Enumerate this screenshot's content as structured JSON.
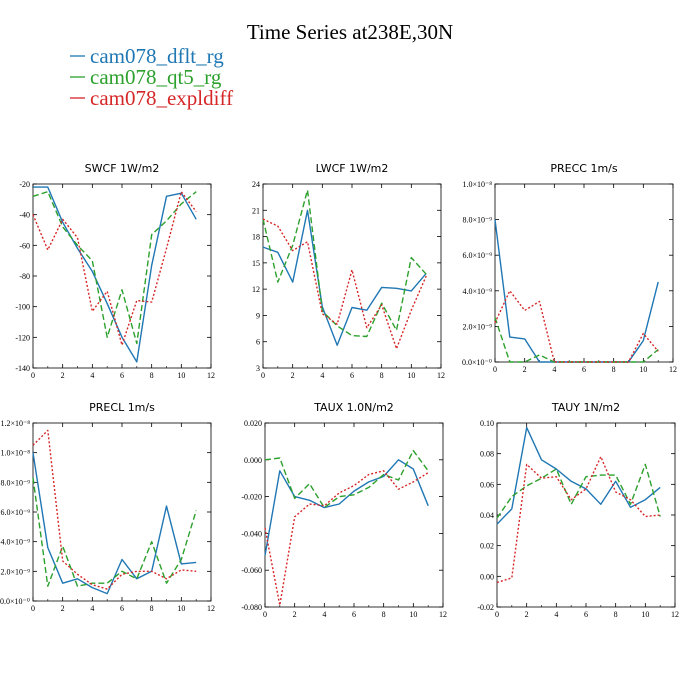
{
  "figure": {
    "title": "Time Series at238E,30N",
    "legend": [
      {
        "label": "cam078_dflt_rg",
        "color": "#1f77b4"
      },
      {
        "label": "cam078_qt5_rg",
        "color": "#2ca02c"
      },
      {
        "label": "cam078_expldiff",
        "color": "#d62728"
      }
    ]
  },
  "chart_data": [
    {
      "type": "line",
      "title": "SWCF   1W/m2",
      "x": [
        0,
        1,
        2,
        3,
        4,
        5,
        6,
        7,
        8,
        9,
        10,
        11
      ],
      "xlim": [
        0,
        12
      ],
      "xticks": [
        "0",
        "2",
        "4",
        "6",
        "8",
        "10",
        "12"
      ],
      "ylim": [
        -140,
        -20
      ],
      "yticks": [
        "-20",
        "-40",
        "-60",
        "-80",
        "-100",
        "-120",
        "-140"
      ],
      "series": [
        {
          "name": "cam078_dflt_rg",
          "values": [
            -22,
            -22,
            -45,
            -62,
            -77,
            -98,
            -120,
            -136,
            -73,
            -28,
            -26,
            -43
          ]
        },
        {
          "name": "cam078_qt5_rg",
          "values": [
            -28,
            -25,
            -48,
            -60,
            -70,
            -120,
            -89,
            -124,
            -53,
            -44,
            -33,
            -25
          ]
        },
        {
          "name": "cam078_expldiff",
          "values": [
            -40,
            -63,
            -43,
            -55,
            -103,
            -90,
            -125,
            -96,
            -97,
            -62,
            -25,
            -38
          ]
        }
      ]
    },
    {
      "type": "line",
      "title": "LWCF   1W/m2",
      "x": [
        0,
        1,
        2,
        3,
        4,
        5,
        6,
        7,
        8,
        9,
        10,
        11
      ],
      "xlim": [
        0,
        12
      ],
      "xticks": [
        "0",
        "2",
        "4",
        "6",
        "8",
        "10",
        "12"
      ],
      "ylim": [
        3,
        24
      ],
      "yticks": [
        "24",
        "21",
        "18",
        "15",
        "12",
        "9",
        "6",
        "3"
      ],
      "series": [
        {
          "name": "cam078_dflt_rg",
          "values": [
            16.8,
            16.2,
            12.8,
            21.0,
            10.0,
            5.6,
            9.9,
            9.6,
            12.2,
            12.1,
            11.8,
            13.8
          ]
        },
        {
          "name": "cam078_qt5_rg",
          "values": [
            20.0,
            12.8,
            17.0,
            23.3,
            9.5,
            7.8,
            6.7,
            6.6,
            10.4,
            7.3,
            15.6,
            13.7
          ]
        },
        {
          "name": "cam078_expldiff",
          "values": [
            20.0,
            19.2,
            16.4,
            17.4,
            9.2,
            8.0,
            14.2,
            7.6,
            10.2,
            5.2,
            9.6,
            13.5
          ]
        }
      ]
    },
    {
      "type": "line",
      "title": "PRECC   1m/s",
      "x": [
        0,
        1,
        2,
        3,
        4,
        5,
        6,
        7,
        8,
        9,
        10,
        11
      ],
      "xlim": [
        0,
        12
      ],
      "xticks": [
        "0",
        "2",
        "4",
        "6",
        "8",
        "10",
        "12"
      ],
      "ylim": [
        0,
        1.0
      ],
      "yunit_exp": "-8",
      "yticks": [
        "1.0×10⁻⁸",
        "8.0×10⁻⁹",
        "6.0×10⁻⁹",
        "4.0×10⁻⁹",
        "2.0×10⁻⁹",
        "0.0×10⁻⁰"
      ],
      "series": [
        {
          "name": "cam078_dflt_rg",
          "values": [
            0.8,
            0.14,
            0.13,
            0.0,
            0.0,
            0.0,
            0.0,
            0.0,
            0.0,
            0.0,
            0.12,
            0.45
          ]
        },
        {
          "name": "cam078_qt5_rg",
          "values": [
            0.25,
            0.0,
            0.0,
            0.04,
            0.0,
            0.0,
            0.0,
            0.0,
            0.0,
            0.0,
            0.0,
            0.07
          ]
        },
        {
          "name": "cam078_expldiff",
          "values": [
            0.22,
            0.4,
            0.29,
            0.34,
            0.0,
            0.0,
            0.0,
            0.0,
            0.0,
            0.0,
            0.16,
            0.06
          ]
        }
      ]
    },
    {
      "type": "line",
      "title": "PRECL   1m/s",
      "x": [
        0,
        1,
        2,
        3,
        4,
        5,
        6,
        7,
        8,
        9,
        10,
        11
      ],
      "xlim": [
        0,
        12
      ],
      "xticks": [
        "0",
        "2",
        "4",
        "6",
        "8",
        "10",
        "12"
      ],
      "ylim": [
        0,
        1.2
      ],
      "yunit_exp": "-8",
      "yticks": [
        "1.2×10⁻⁸",
        "1.0×10⁻⁸",
        "8.0×10⁻⁹",
        "6.0×10⁻⁹",
        "4.0×10⁻⁹",
        "2.0×10⁻⁹",
        "0.0×10⁻⁰"
      ],
      "series": [
        {
          "name": "cam078_dflt_rg",
          "values": [
            1.0,
            0.36,
            0.12,
            0.15,
            0.09,
            0.05,
            0.28,
            0.15,
            0.2,
            0.64,
            0.25,
            0.26
          ]
        },
        {
          "name": "cam078_qt5_rg",
          "values": [
            0.83,
            0.1,
            0.37,
            0.1,
            0.12,
            0.12,
            0.2,
            0.15,
            0.4,
            0.12,
            0.28,
            0.61
          ]
        },
        {
          "name": "cam078_expldiff",
          "values": [
            1.05,
            1.15,
            0.27,
            0.18,
            0.11,
            0.08,
            0.18,
            0.2,
            0.2,
            0.15,
            0.21,
            0.2
          ]
        }
      ]
    },
    {
      "type": "line",
      "title": "TAUX   1.0N/m2",
      "x": [
        0,
        1,
        2,
        3,
        4,
        5,
        6,
        7,
        8,
        9,
        10,
        11
      ],
      "xlim": [
        0,
        12
      ],
      "xticks": [
        "0",
        "2",
        "4",
        "6",
        "8",
        "10",
        "12"
      ],
      "ylim": [
        -0.08,
        0.02
      ],
      "yticks": [
        "0.020",
        "0.000",
        "-0.020",
        "-0.040",
        "-0.060",
        "-0.080"
      ],
      "series": [
        {
          "name": "cam078_dflt_rg",
          "values": [
            -0.052,
            -0.006,
            -0.02,
            -0.022,
            -0.026,
            -0.024,
            -0.017,
            -0.012,
            -0.009,
            0.0,
            -0.005,
            -0.025
          ]
        },
        {
          "name": "cam078_qt5_rg",
          "values": [
            0.0,
            0.001,
            -0.021,
            -0.013,
            -0.026,
            -0.02,
            -0.019,
            -0.015,
            -0.008,
            -0.011,
            0.005,
            -0.006
          ]
        },
        {
          "name": "cam078_expldiff",
          "values": [
            -0.037,
            -0.079,
            -0.031,
            -0.024,
            -0.025,
            -0.018,
            -0.014,
            -0.008,
            -0.006,
            -0.016,
            -0.012,
            -0.007
          ]
        }
      ]
    },
    {
      "type": "line",
      "title": "TAUY   1N/m2",
      "x": [
        0,
        1,
        2,
        3,
        4,
        5,
        6,
        7,
        8,
        9,
        10,
        11
      ],
      "xlim": [
        0,
        12
      ],
      "xticks": [
        "0",
        "2",
        "4",
        "6",
        "8",
        "10",
        "12"
      ],
      "ylim": [
        -0.02,
        0.1
      ],
      "yticks": [
        "0.10",
        "0.08",
        "0.06",
        "0.04",
        "0.02",
        "0.00",
        "-0.02"
      ],
      "series": [
        {
          "name": "cam078_dflt_rg",
          "values": [
            0.034,
            0.044,
            0.097,
            0.076,
            0.07,
            0.062,
            0.057,
            0.047,
            0.062,
            0.045,
            0.05,
            0.058
          ]
        },
        {
          "name": "cam078_qt5_rg",
          "values": [
            0.038,
            0.052,
            0.059,
            0.064,
            0.07,
            0.047,
            0.065,
            0.066,
            0.066,
            0.047,
            0.073,
            0.039
          ]
        },
        {
          "name": "cam078_expldiff",
          "values": [
            -0.004,
            -0.001,
            0.073,
            0.064,
            0.065,
            0.05,
            0.057,
            0.078,
            0.055,
            0.05,
            0.039,
            0.04
          ]
        }
      ]
    }
  ]
}
